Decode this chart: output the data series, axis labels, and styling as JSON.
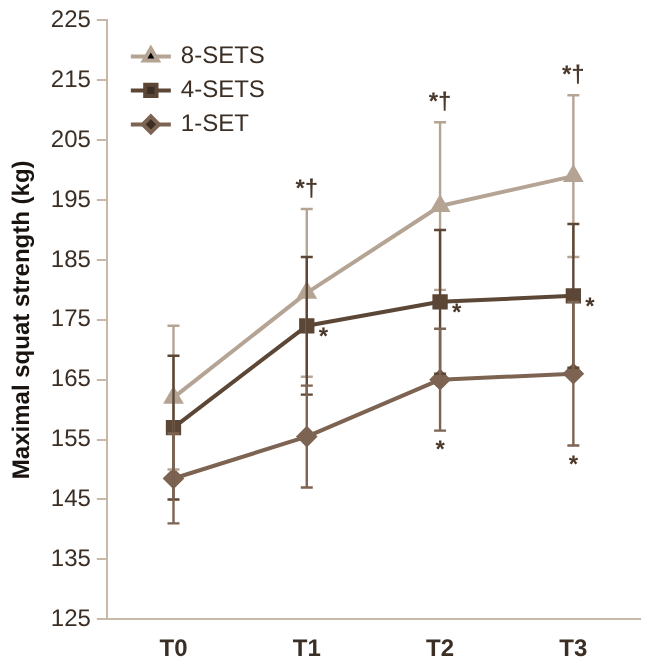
{
  "chart_data": {
    "type": "line",
    "ylabel": "Maximal squat strength (kg)",
    "categories": [
      "T0",
      "T1",
      "T2",
      "T3"
    ],
    "series": [
      {
        "name": "8-SETS",
        "color": "#b5a494",
        "marker": "triangle",
        "values": [
          162,
          179.5,
          194,
          199
        ],
        "errors": [
          12,
          14,
          14,
          13.5
        ]
      },
      {
        "name": "4-SETS",
        "color": "#5c4636",
        "marker": "square",
        "values": [
          157,
          174,
          178,
          179
        ],
        "errors": [
          12,
          11.5,
          12,
          12
        ]
      },
      {
        "name": "1-SET",
        "color": "#7d6352",
        "marker": "diamond",
        "values": [
          148.5,
          155.5,
          165,
          166
        ],
        "errors": [
          7.5,
          8.5,
          8.5,
          12
        ]
      }
    ],
    "ylim": [
      125,
      225
    ],
    "yticks": [
      125,
      135,
      145,
      155,
      165,
      175,
      185,
      195,
      205,
      215,
      225
    ],
    "grid": false,
    "legend": "top left",
    "annotations": [
      {
        "text": "*†",
        "x": "T1",
        "y": 193.5
      },
      {
        "text": "*†",
        "x": "T2",
        "y": 208
      },
      {
        "text": "*†",
        "x": "T3",
        "y": 212.5
      },
      {
        "text": "*",
        "x": "T1",
        "y": 174
      },
      {
        "text": "*",
        "x": "T2",
        "y": 178
      },
      {
        "text": "*",
        "x": "T3",
        "y": 179
      },
      {
        "text": "*",
        "x": "T2",
        "y": 156.5
      },
      {
        "text": "*",
        "x": "T3",
        "y": 154
      }
    ]
  }
}
